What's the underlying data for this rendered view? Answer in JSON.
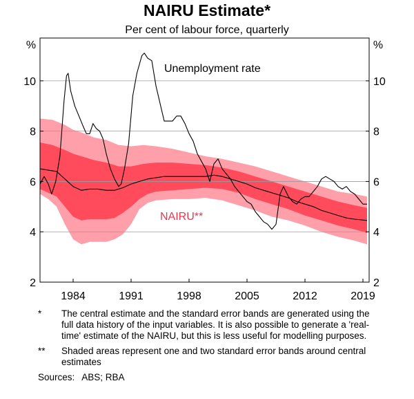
{
  "chart_data": {
    "type": "line",
    "title": "NAIRU Estimate*",
    "subtitle": "Per cent of labour force, quarterly",
    "ylabel_left": "%",
    "ylabel_right": "%",
    "ylim": [
      2,
      11.7
    ],
    "y_ticks": [
      2,
      4,
      6,
      8,
      10
    ],
    "xlim": [
      1980.0,
      2019.75
    ],
    "x_ticks": [
      1984,
      1991,
      1998,
      2005,
      2012,
      2019
    ],
    "x_tick_labels": [
      "1984",
      "1991",
      "1998",
      "2005",
      "2012",
      "2019"
    ],
    "grid": true,
    "series": [
      {
        "name": "Unemployment rate",
        "color": "#000000",
        "points": [
          [
            1980.0,
            5.9
          ],
          [
            1980.5,
            6.2
          ],
          [
            1981.0,
            5.9
          ],
          [
            1981.4,
            5.5
          ],
          [
            1981.9,
            6.0
          ],
          [
            1982.4,
            7.0
          ],
          [
            1982.9,
            9.2
          ],
          [
            1983.2,
            10.2
          ],
          [
            1983.4,
            10.3
          ],
          [
            1983.7,
            9.6
          ],
          [
            1984.2,
            9.0
          ],
          [
            1984.7,
            8.6
          ],
          [
            1985.2,
            8.2
          ],
          [
            1985.6,
            7.9
          ],
          [
            1986.0,
            7.9
          ],
          [
            1986.4,
            8.3
          ],
          [
            1986.8,
            8.1
          ],
          [
            1987.2,
            8.0
          ],
          [
            1987.6,
            7.7
          ],
          [
            1988.0,
            7.1
          ],
          [
            1988.5,
            6.5
          ],
          [
            1989.0,
            6.1
          ],
          [
            1989.5,
            5.8
          ],
          [
            1989.8,
            5.9
          ],
          [
            1990.2,
            6.5
          ],
          [
            1990.7,
            7.5
          ],
          [
            1991.2,
            9.4
          ],
          [
            1991.7,
            10.3
          ],
          [
            1992.3,
            11.0
          ],
          [
            1992.6,
            11.1
          ],
          [
            1993.0,
            10.9
          ],
          [
            1993.5,
            10.8
          ],
          [
            1994.0,
            9.8
          ],
          [
            1994.5,
            9.1
          ],
          [
            1995.0,
            8.4
          ],
          [
            1995.5,
            8.4
          ],
          [
            1996.0,
            8.4
          ],
          [
            1996.5,
            8.6
          ],
          [
            1997.0,
            8.6
          ],
          [
            1997.5,
            8.3
          ],
          [
            1998.0,
            7.9
          ],
          [
            1998.5,
            7.6
          ],
          [
            1999.0,
            7.1
          ],
          [
            1999.5,
            6.8
          ],
          [
            2000.0,
            6.5
          ],
          [
            2000.5,
            6.0
          ],
          [
            2001.0,
            6.7
          ],
          [
            2001.5,
            6.9
          ],
          [
            2002.0,
            6.5
          ],
          [
            2002.5,
            6.3
          ],
          [
            2003.0,
            6.1
          ],
          [
            2003.5,
            5.8
          ],
          [
            2004.0,
            5.6
          ],
          [
            2004.5,
            5.4
          ],
          [
            2005.0,
            5.2
          ],
          [
            2005.5,
            5.1
          ],
          [
            2006.0,
            4.8
          ],
          [
            2006.5,
            4.6
          ],
          [
            2007.0,
            4.4
          ],
          [
            2007.5,
            4.3
          ],
          [
            2008.0,
            4.1
          ],
          [
            2008.5,
            4.3
          ],
          [
            2009.0,
            5.5
          ],
          [
            2009.4,
            5.8
          ],
          [
            2010.0,
            5.4
          ],
          [
            2010.5,
            5.2
          ],
          [
            2011.0,
            5.1
          ],
          [
            2011.5,
            5.3
          ],
          [
            2012.0,
            5.4
          ],
          [
            2012.5,
            5.4
          ],
          [
            2013.0,
            5.6
          ],
          [
            2013.5,
            5.8
          ],
          [
            2014.0,
            6.1
          ],
          [
            2014.5,
            6.2
          ],
          [
            2015.0,
            6.1
          ],
          [
            2015.5,
            6.0
          ],
          [
            2016.0,
            5.8
          ],
          [
            2016.5,
            5.7
          ],
          [
            2017.0,
            5.8
          ],
          [
            2017.5,
            5.6
          ],
          [
            2018.0,
            5.5
          ],
          [
            2018.5,
            5.3
          ],
          [
            2019.0,
            5.1
          ],
          [
            2019.5,
            5.1
          ]
        ]
      },
      {
        "name": "NAIRU**",
        "color": "#000000",
        "points": [
          [
            1980.0,
            6.5
          ],
          [
            1982.0,
            6.4
          ],
          [
            1983.0,
            6.1
          ],
          [
            1984.0,
            5.8
          ],
          [
            1985.0,
            5.65
          ],
          [
            1986.0,
            5.7
          ],
          [
            1987.0,
            5.7
          ],
          [
            1988.0,
            5.65
          ],
          [
            1989.0,
            5.65
          ],
          [
            1990.0,
            5.75
          ],
          [
            1991.0,
            5.9
          ],
          [
            1992.0,
            6.0
          ],
          [
            1993.0,
            6.1
          ],
          [
            1994.0,
            6.15
          ],
          [
            1995.0,
            6.2
          ],
          [
            1996.0,
            6.2
          ],
          [
            1997.0,
            6.2
          ],
          [
            1998.0,
            6.2
          ],
          [
            1999.0,
            6.2
          ],
          [
            2000.0,
            6.2
          ],
          [
            2001.0,
            6.25
          ],
          [
            2002.0,
            6.2
          ],
          [
            2003.0,
            6.1
          ],
          [
            2004.0,
            6.0
          ],
          [
            2005.0,
            5.9
          ],
          [
            2006.0,
            5.75
          ],
          [
            2007.0,
            5.65
          ],
          [
            2008.0,
            5.55
          ],
          [
            2009.0,
            5.45
          ],
          [
            2010.0,
            5.35
          ],
          [
            2011.0,
            5.2
          ],
          [
            2012.0,
            5.1
          ],
          [
            2013.0,
            5.0
          ],
          [
            2014.0,
            4.85
          ],
          [
            2015.0,
            4.75
          ],
          [
            2016.0,
            4.65
          ],
          [
            2017.0,
            4.55
          ],
          [
            2018.0,
            4.5
          ],
          [
            2019.5,
            4.45
          ]
        ]
      }
    ],
    "bands": [
      {
        "name": "Two standard error band",
        "color": "#FF9FAA",
        "upper": [
          [
            1980.0,
            8.5
          ],
          [
            1981.5,
            8.45
          ],
          [
            1983.0,
            8.25
          ],
          [
            1984.0,
            8.05
          ],
          [
            1985.0,
            7.95
          ],
          [
            1986.5,
            7.75
          ],
          [
            1988.0,
            7.65
          ],
          [
            1989.5,
            7.45
          ],
          [
            1991.0,
            7.4
          ],
          [
            1992.5,
            7.45
          ],
          [
            1994.0,
            7.4
          ],
          [
            1996.0,
            7.3
          ],
          [
            1998.0,
            7.15
          ],
          [
            2000.0,
            7.0
          ],
          [
            2002.0,
            6.9
          ],
          [
            2004.0,
            6.75
          ],
          [
            2006.0,
            6.6
          ],
          [
            2008.0,
            6.4
          ],
          [
            2010.0,
            6.2
          ],
          [
            2012.0,
            6.0
          ],
          [
            2014.0,
            5.8
          ],
          [
            2016.0,
            5.6
          ],
          [
            2018.0,
            5.5
          ],
          [
            2019.5,
            5.4
          ]
        ],
        "lower": [
          [
            1980.0,
            5.5
          ],
          [
            1981.0,
            5.3
          ],
          [
            1982.0,
            5.0
          ],
          [
            1983.0,
            4.3
          ],
          [
            1984.0,
            3.7
          ],
          [
            1985.0,
            3.5
          ],
          [
            1986.0,
            3.6
          ],
          [
            1987.0,
            3.6
          ],
          [
            1988.0,
            3.6
          ],
          [
            1989.0,
            3.7
          ],
          [
            1990.0,
            3.9
          ],
          [
            1991.0,
            4.3
          ],
          [
            1992.0,
            4.9
          ],
          [
            1993.0,
            5.15
          ],
          [
            1994.0,
            5.25
          ],
          [
            1996.0,
            5.3
          ],
          [
            1998.0,
            5.3
          ],
          [
            2000.0,
            5.35
          ],
          [
            2002.0,
            5.25
          ],
          [
            2004.0,
            5.05
          ],
          [
            2006.0,
            4.85
          ],
          [
            2008.0,
            4.6
          ],
          [
            2010.0,
            4.45
          ],
          [
            2012.0,
            4.25
          ],
          [
            2014.0,
            4.0
          ],
          [
            2016.0,
            3.8
          ],
          [
            2018.0,
            3.65
          ],
          [
            2019.5,
            3.5
          ]
        ]
      },
      {
        "name": "One standard error band",
        "color": "#FF4B5C",
        "upper": [
          [
            1980.0,
            7.55
          ],
          [
            1981.5,
            7.45
          ],
          [
            1983.0,
            7.25
          ],
          [
            1984.0,
            7.1
          ],
          [
            1985.0,
            7.0
          ],
          [
            1986.5,
            6.85
          ],
          [
            1988.0,
            6.75
          ],
          [
            1989.5,
            6.6
          ],
          [
            1991.0,
            6.6
          ],
          [
            1992.5,
            6.7
          ],
          [
            1994.0,
            6.75
          ],
          [
            1996.0,
            6.75
          ],
          [
            1998.0,
            6.7
          ],
          [
            2000.0,
            6.65
          ],
          [
            2002.0,
            6.55
          ],
          [
            2004.0,
            6.4
          ],
          [
            2006.0,
            6.2
          ],
          [
            2008.0,
            6.0
          ],
          [
            2010.0,
            5.8
          ],
          [
            2012.0,
            5.6
          ],
          [
            2014.0,
            5.4
          ],
          [
            2016.0,
            5.2
          ],
          [
            2018.0,
            5.05
          ],
          [
            2019.5,
            4.95
          ]
        ],
        "lower": [
          [
            1980.0,
            5.7
          ],
          [
            1981.0,
            5.55
          ],
          [
            1982.0,
            5.4
          ],
          [
            1983.0,
            5.0
          ],
          [
            1984.0,
            4.6
          ],
          [
            1985.0,
            4.45
          ],
          [
            1986.0,
            4.5
          ],
          [
            1987.0,
            4.5
          ],
          [
            1988.0,
            4.5
          ],
          [
            1989.0,
            4.55
          ],
          [
            1990.0,
            4.75
          ],
          [
            1991.0,
            5.0
          ],
          [
            1992.0,
            5.3
          ],
          [
            1993.0,
            5.5
          ],
          [
            1994.0,
            5.6
          ],
          [
            1996.0,
            5.65
          ],
          [
            1998.0,
            5.7
          ],
          [
            2000.0,
            5.75
          ],
          [
            2002.0,
            5.7
          ],
          [
            2004.0,
            5.55
          ],
          [
            2006.0,
            5.3
          ],
          [
            2008.0,
            5.1
          ],
          [
            2010.0,
            4.9
          ],
          [
            2012.0,
            4.65
          ],
          [
            2014.0,
            4.45
          ],
          [
            2016.0,
            4.25
          ],
          [
            2018.0,
            4.1
          ],
          [
            2019.5,
            3.95
          ]
        ]
      }
    ],
    "annotations": [
      {
        "text": "Unemployment rate",
        "color": "#000000"
      },
      {
        "text": "NAIRU**",
        "color": "#E8364F"
      }
    ]
  },
  "footnotes": [
    {
      "marker": "*",
      "text": "The central estimate and the standard error bands are generated using the full data history of the input variables. It is also possible to generate a 'real-time' estimate of the NAIRU, but this is less useful for modelling purposes."
    },
    {
      "marker": "**",
      "text": "Shaded areas represent one and two standard error bands around central estimates"
    }
  ],
  "sources": {
    "label": "Sources:",
    "text": "ABS; RBA"
  }
}
